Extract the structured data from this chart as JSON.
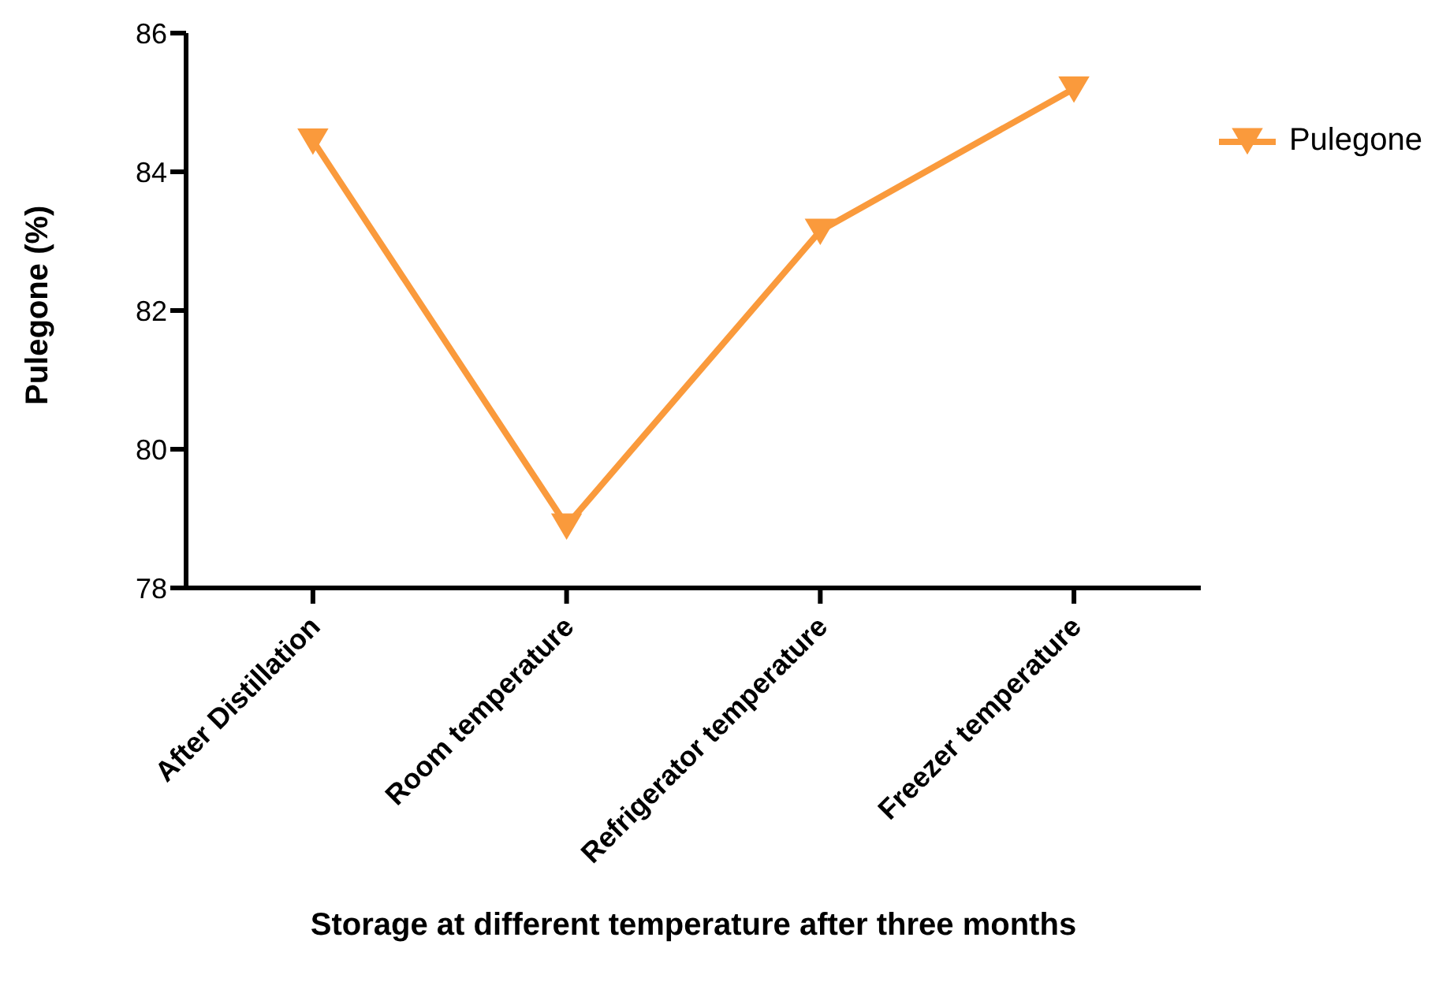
{
  "chart_data": {
    "type": "line",
    "xlabel": "Storage at different temperature after three months",
    "ylabel": "Pulegone (%)",
    "categories": [
      "After Distillation",
      "Room temperature",
      "Refrigerator temperature",
      "Freezer temperature"
    ],
    "series": [
      {
        "name": "Pulegone",
        "color": "#fa9a3c",
        "values": [
          84.45,
          78.9,
          83.15,
          85.2
        ]
      }
    ],
    "ylim": [
      78,
      86
    ],
    "yticks": [
      78,
      80,
      82,
      84,
      86
    ],
    "grid": false,
    "legend": "right",
    "marker": "triangle",
    "line_style": "solid"
  }
}
